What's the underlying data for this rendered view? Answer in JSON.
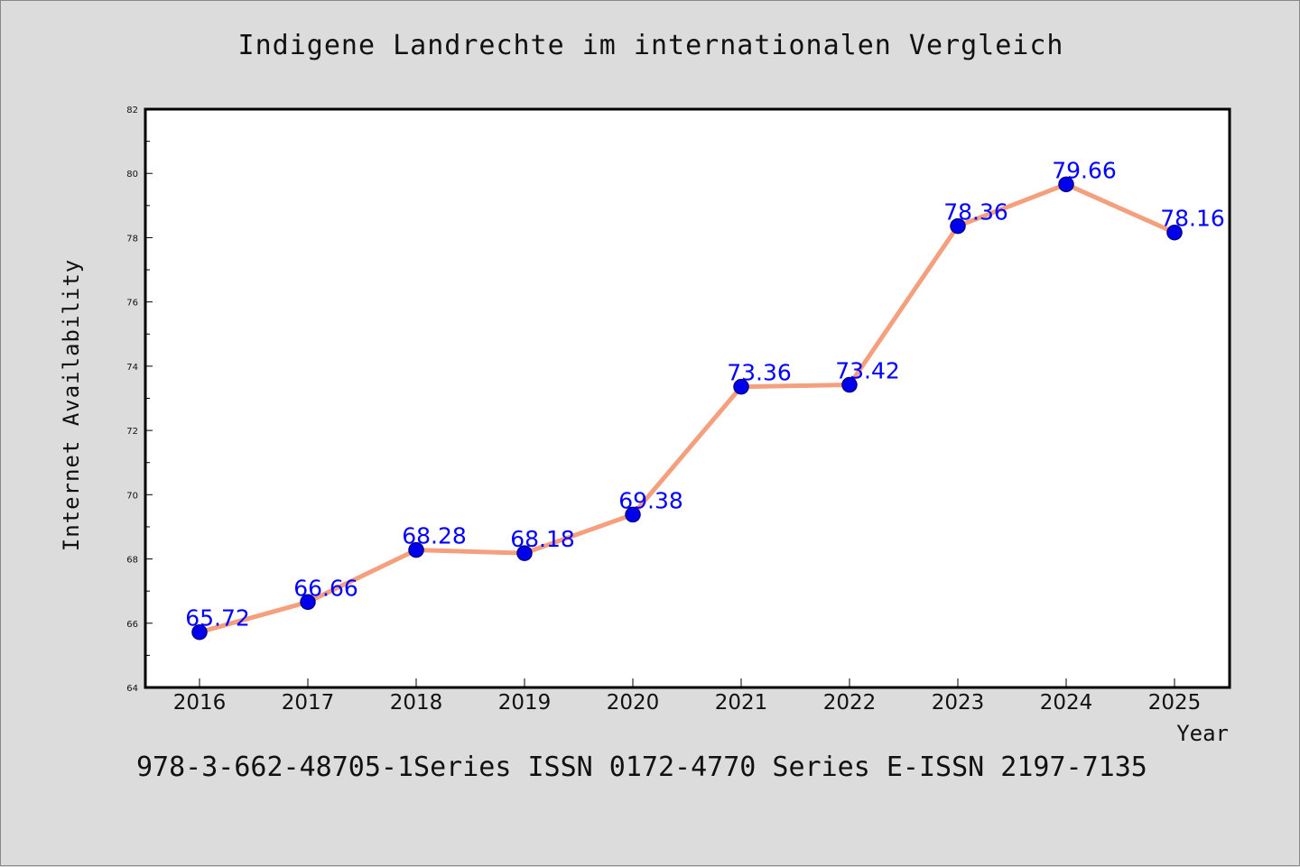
{
  "colors": {
    "line": "#f4a07e",
    "marker": "#0000ee",
    "label": "#0000ff",
    "background": "#dcdcdc",
    "plot_background": "#ffffff"
  },
  "footer_text": "978-3-662-48705-1Series ISSN 0172-4770 Series E-ISSN 2197-7135",
  "chart_data": {
    "type": "line",
    "title": "Indigene Landrechte im internationalen Vergleich",
    "xlabel": "Year",
    "ylabel": "Internet Availability",
    "categories": [
      "2016",
      "2017",
      "2018",
      "2019",
      "2020",
      "2021",
      "2022",
      "2023",
      "2024",
      "2025"
    ],
    "series": [
      {
        "values": [
          65.72,
          66.66,
          68.28,
          68.18,
          69.38,
          73.36,
          73.42,
          78.36,
          79.66,
          78.16
        ]
      }
    ],
    "data_labels": [
      "65.72",
      "66.66",
      "68.28",
      "68.18",
      "69.38",
      "73.36",
      "73.42",
      "78.36",
      "79.66",
      "78.16"
    ],
    "ylim": [
      64,
      82
    ],
    "yticks": [
      "64",
      "66",
      "68",
      "70",
      "72",
      "74",
      "76",
      "78",
      "80",
      "82"
    ],
    "grid": false,
    "legend": "none"
  }
}
